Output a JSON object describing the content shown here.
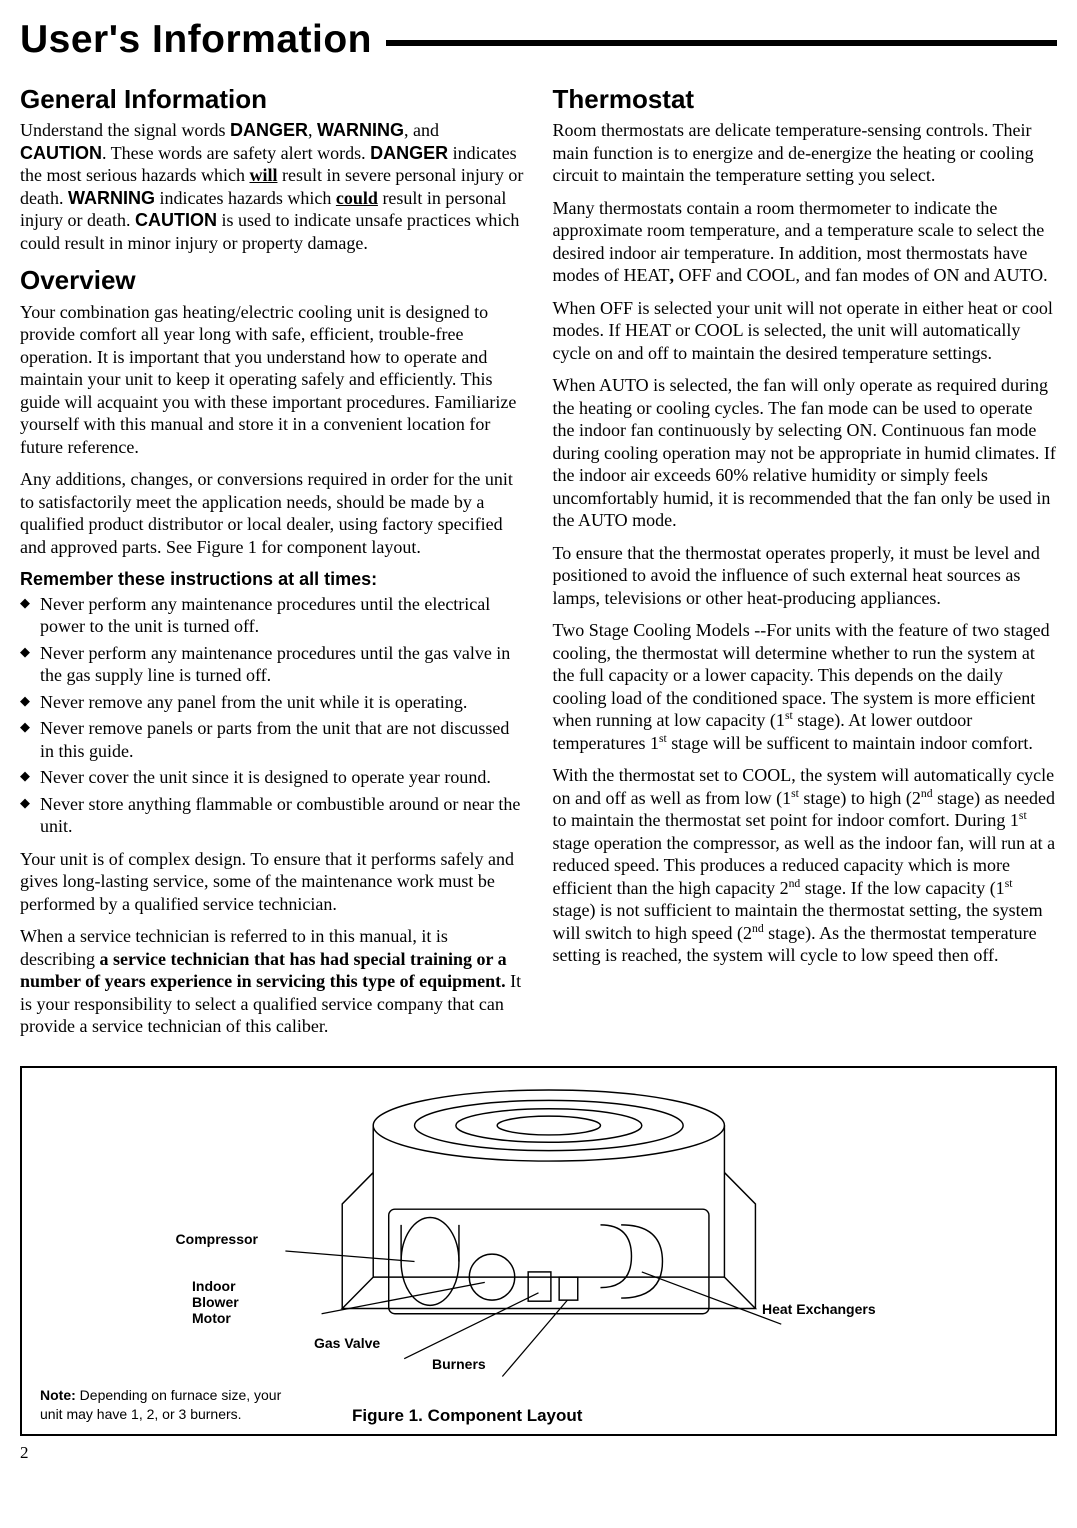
{
  "page_title": "User's  Information",
  "page_number": "2",
  "left": {
    "h_general": "General  Information",
    "p_general": "Understand the signal words <span class=\"sans-b\">DANGER</span>, <span class=\"sans-b\">WARNING</span>, and <span class=\"sans-b\">CAUTION</span>.  These words are safety alert words.  <span class=\"sans-b\">DANGER</span> indicates the most serious hazards which <span class=\"u\">will</span> result in severe personal injury or death.  <span class=\"sans-b\">WARNING</span> indicates hazards which <span class=\"u\">could</span> result in personal injury or death. <span class=\"sans-b\">CAUTION</span> is used to indicate unsafe practices which could result in minor injury or property damage.",
    "h_overview": "Overview",
    "p_overview1": "Your combination gas heating/electric cooling unit is designed to provide comfort all year long with safe, efficient, trouble-free operation. It is important that you understand how to operate and maintain your unit to keep it operating safely and efficiently. This guide will acquaint you with these important procedures. Familiarize yourself with this manual and store it in a convenient location for future reference.",
    "p_overview2": "Any additions, changes, or conversions required in order for the unit to satisfactorily meet the application needs, should be made by a qualified product distributor or local dealer, using factory specified and approved parts. See Figure 1 for component layout.",
    "remember_heading": "Remember these instructions at all times:",
    "bullets": [
      "Never perform any maintenance procedures until the electrical power to the unit is turned off.",
      "Never perform any maintenance procedures until the gas valve in the gas supply line is turned off.",
      "Never remove any panel from the unit while it is operating.",
      "Never remove panels or parts from the unit that are not discussed in this guide.",
      "Never cover the unit since it is designed to operate year round.",
      "Never store anything flammable or combustible around or near the unit."
    ],
    "p_complex": "Your unit is of complex design. To ensure that it performs safely and gives long-lasting service, some of the maintenance work must be performed by a qualified service technician.",
    "p_tech": "When a service technician is referred to in this manual, it is describing <b>a service technician that  has had special training or a number of years experience in servicing this type of equipment.</b> It is your responsibility to select a qualified service company that can provide a service technician of this caliber."
  },
  "right": {
    "h_thermo": "Thermostat",
    "p1": "Room thermostats are delicate temperature-sensing controls. Their main function is to energize and de-energize the heating or cooling circuit to maintain the temperature setting you select.",
    "p2": "Many thermostats contain a room thermometer to indicate the approximate room temperature, and a temperature scale to select the desired indoor air temperature. In addition, most thermostats have modes of HEAT<b>,</b> OFF and COOL, and fan modes of ON and AUTO.",
    "p3": "When OFF is selected your unit will not operate in either heat or cool modes. If  HEAT or COOL is selected, the unit will automatically cycle on and off to maintain the desired temperature settings.",
    "p4": "When AUTO is selected, the fan will only operate as required during the heating or cooling cycles. The fan mode can be used to operate the indoor fan continuously by selecting ON.  Continuous fan mode during cooling operation may not be appropriate in humid climates. If the indoor air exceeds 60% relative humidity or simply feels uncomfortably humid, it is recommended that the fan only be used in the AUTO mode.",
    "p5": "To ensure that the thermostat operates properly, it must be level and positioned to avoid the influence of such external heat sources as lamps, televisions or other heat-producing appliances.",
    "p6": "Two Stage Cooling Models --For units with the feature of two staged cooling, the thermostat will determine whether to run the system at the full capacity or a lower capacity. This depends on the daily cooling load of the conditioned space. The system is more efficient when running at low capacity (1<sup>st</sup> stage). At lower outdoor temperatures 1<sup>st</sup> stage will be sufficent to maintain indoor comfort.",
    "p7": "With the thermostat set to COOL, the system will automatically cycle on and off as well as from low (1<sup>st</sup> stage) to high (2<sup>nd</sup> stage) as needed to maintain the thermostat set point for indoor comfort. During 1<sup>st</sup> stage operation the compressor, as well as the indoor fan, will run at a reduced speed. This produces a reduced capacity which is more efficient than the high capacity 2<sup>nd</sup> stage. If the low capacity (1<sup>st</sup> stage) is not sufficient to maintain the thermostat setting, the system will switch to high speed (2<sup>nd</sup> stage). As the thermostat temperature setting is reached, the system will cycle to low speed then off."
  },
  "figure": {
    "compressor": "Compressor",
    "blower": "Indoor Blower Motor",
    "gas_valve": "Gas Valve",
    "burners": "Burners",
    "heat_ex": "Heat  Exchangers",
    "note_b": "Note:",
    "note_rest": " Depending on furnace size, your unit may have 1, 2, or 3 burners.",
    "caption": "Figure 1.  Component Layout"
  }
}
